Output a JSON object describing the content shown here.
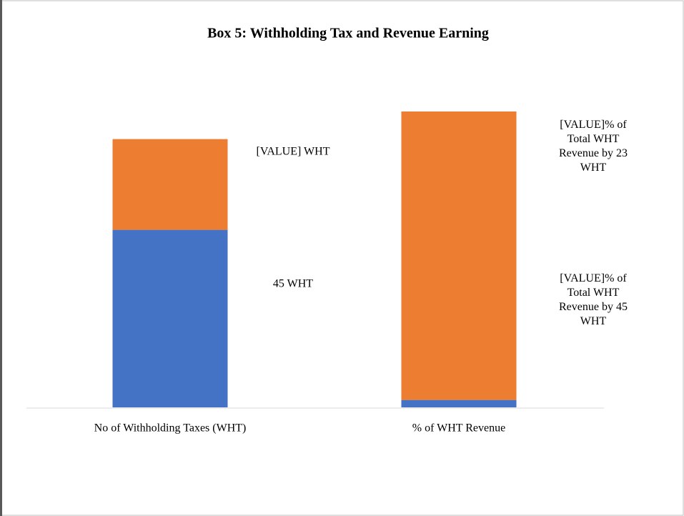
{
  "chart_data": {
    "type": "bar",
    "stacked": true,
    "title": "Box 5: Withholding Tax and Revenue Earning",
    "categories": [
      "No of Withholding Taxes (WHT)",
      "% of WHT Revenue"
    ],
    "category_axis": [
      "y",
      "y2"
    ],
    "ylim": [
      0,
      75
    ],
    "y2lim": [
      0,
      100
    ],
    "series": [
      {
        "color": "#4472c4",
        "values": [
          45,
          2.5
        ],
        "value_labels": [
          "45 WHT",
          "[VALUE]% of Total WHT Revenue by 45 WHT"
        ]
      },
      {
        "color": "#ed7d31",
        "values": [
          23,
          97.5
        ],
        "value_labels": [
          "[VALUE] WHT",
          "[VALUE]% of Total WHT Revenue by 23 WHT"
        ]
      }
    ]
  }
}
